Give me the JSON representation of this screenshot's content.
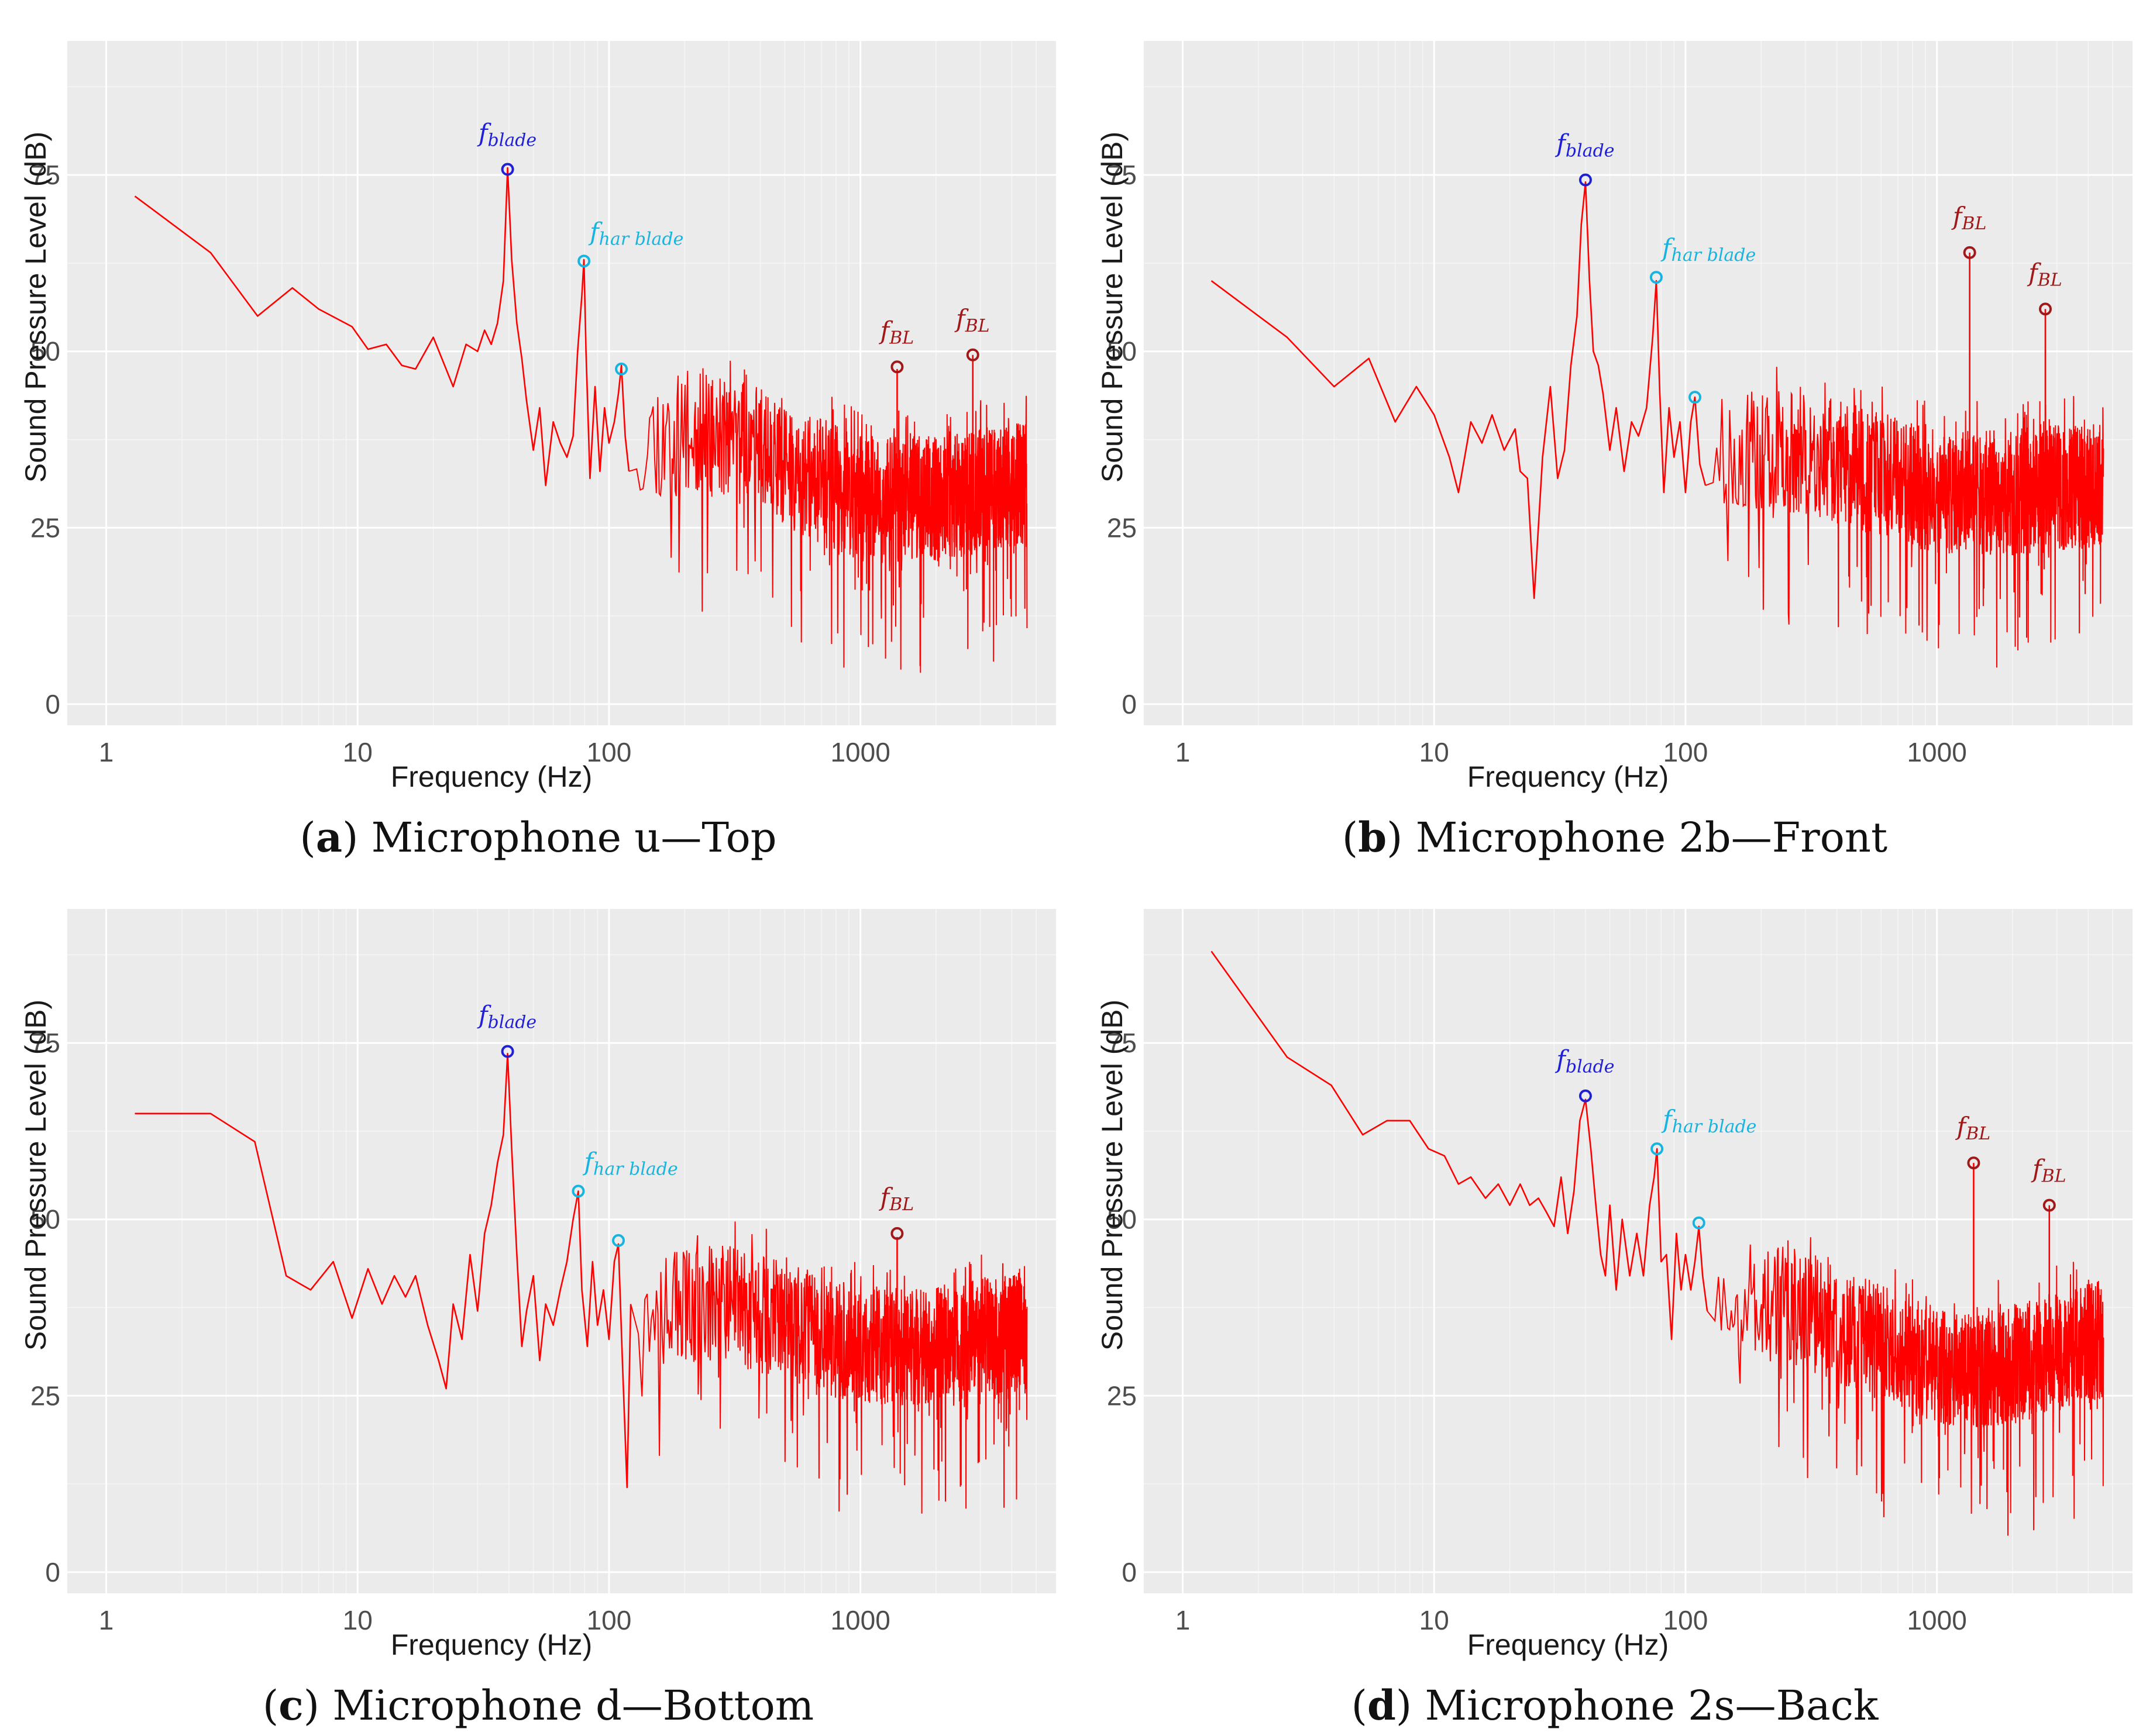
{
  "colors": {
    "panel_bg": "#ebebeb",
    "grid_major": "#ffffff",
    "line": "#ff0000",
    "blade": "#1f1fd6",
    "harmonic": "#18b4e0",
    "bl": "#a01818"
  },
  "chart_data": [
    {
      "id": "a",
      "type": "line",
      "caption_letter": "a",
      "caption_text": "Microphone u—Top",
      "xlabel": "Frequency (Hz)",
      "ylabel": "Sound Pressure Level (dB)",
      "x_scale": "log10",
      "xlim": [
        0.7,
        6000
      ],
      "ylim": [
        -3,
        94
      ],
      "x_ticks": [
        1,
        10,
        100,
        1000
      ],
      "x_tick_labels": [
        "1",
        "10",
        "100",
        "1000"
      ],
      "y_ticks": [
        0,
        25,
        50,
        75
      ],
      "y_tick_labels": [
        "0",
        "25",
        "50",
        "75"
      ],
      "low_curve": [
        [
          1.3,
          72
        ],
        [
          2.6,
          64
        ],
        [
          4,
          55
        ],
        [
          5.5,
          59
        ],
        [
          7,
          56
        ],
        [
          9.5,
          53.5
        ],
        [
          11,
          50.3
        ],
        [
          13,
          51
        ],
        [
          15,
          48
        ],
        [
          17,
          47.5
        ],
        [
          20,
          52
        ],
        [
          24,
          45
        ],
        [
          27,
          51
        ],
        [
          30,
          50
        ],
        [
          32,
          53
        ],
        [
          34,
          51
        ],
        [
          36,
          54
        ],
        [
          38,
          60
        ],
        [
          39.5,
          76
        ],
        [
          41,
          63
        ],
        [
          43,
          54
        ],
        [
          45,
          49
        ],
        [
          47,
          43
        ],
        [
          50,
          36
        ],
        [
          53,
          42
        ],
        [
          56,
          31
        ],
        [
          60,
          40
        ],
        [
          64,
          37
        ],
        [
          68,
          35
        ],
        [
          72,
          38
        ],
        [
          75,
          50
        ],
        [
          78,
          58
        ],
        [
          79.5,
          63
        ],
        [
          81,
          50
        ],
        [
          84,
          32
        ],
        [
          88,
          45
        ],
        [
          92,
          33
        ],
        [
          96,
          42
        ],
        [
          100,
          37
        ],
        [
          105,
          40
        ],
        [
          109,
          44
        ],
        [
          112,
          48
        ],
        [
          116,
          38
        ],
        [
          120,
          33
        ]
      ],
      "noise": {
        "start": 120,
        "end": 4600,
        "envelope": [
          [
            120,
            38
          ],
          [
            300,
            38
          ],
          [
            1000,
            29
          ],
          [
            1800,
            29
          ],
          [
            4600,
            31
          ]
        ],
        "amplitude": 9,
        "density": 1300,
        "seed": 11
      },
      "spikes": [
        [
          1400,
          47.5
        ],
        [
          2800,
          49.5
        ]
      ],
      "annotations": [
        {
          "label": "f",
          "sub": "blade",
          "kind": "blade",
          "x": 39.5,
          "y": 75.8
        },
        {
          "label": "f",
          "sub": "har blade",
          "kind": "harmonic",
          "x": 79.5,
          "y": 62.8
        },
        {
          "label": "",
          "sub": "",
          "kind": "harmonic",
          "x": 112,
          "y": 47.5
        },
        {
          "label": "f",
          "sub": "BL",
          "kind": "bl",
          "x": 1400,
          "y": 47.8
        },
        {
          "label": "f",
          "sub": "BL",
          "kind": "bl",
          "x": 2800,
          "y": 49.5
        }
      ]
    },
    {
      "id": "b",
      "type": "line",
      "caption_letter": "b",
      "caption_text": "Microphone 2b—Front",
      "xlabel": "Frequency (Hz)",
      "ylabel": "Sound Pressure Level (dB)",
      "x_scale": "log10",
      "xlim": [
        0.7,
        6000
      ],
      "ylim": [
        -3,
        94
      ],
      "x_ticks": [
        1,
        10,
        100,
        1000
      ],
      "x_tick_labels": [
        "1",
        "10",
        "100",
        "1000"
      ],
      "y_ticks": [
        0,
        25,
        50,
        75
      ],
      "y_tick_labels": [
        "0",
        "25",
        "50",
        "75"
      ],
      "low_curve": [
        [
          1.3,
          60
        ],
        [
          2.6,
          52
        ],
        [
          4,
          45
        ],
        [
          5.5,
          49
        ],
        [
          7,
          40
        ],
        [
          8.5,
          45
        ],
        [
          10,
          41
        ],
        [
          11.5,
          35
        ],
        [
          12.5,
          30
        ],
        [
          14,
          40
        ],
        [
          15.5,
          37
        ],
        [
          17,
          41
        ],
        [
          19,
          36
        ],
        [
          21,
          39
        ],
        [
          22,
          33
        ],
        [
          23.5,
          32
        ],
        [
          25,
          15
        ],
        [
          27,
          35
        ],
        [
          29,
          45
        ],
        [
          31,
          32
        ],
        [
          33,
          36
        ],
        [
          35,
          48
        ],
        [
          37,
          55
        ],
        [
          38.5,
          68
        ],
        [
          40,
          74
        ],
        [
          41.5,
          60
        ],
        [
          43,
          50
        ],
        [
          45,
          48
        ],
        [
          47,
          44
        ],
        [
          50,
          36
        ],
        [
          53,
          42
        ],
        [
          57,
          33
        ],
        [
          61,
          40
        ],
        [
          65,
          38
        ],
        [
          70,
          42
        ],
        [
          74,
          52
        ],
        [
          76.5,
          60
        ],
        [
          79,
          44
        ],
        [
          82,
          30
        ],
        [
          86,
          42
        ],
        [
          90,
          35
        ],
        [
          95,
          40
        ],
        [
          100,
          30
        ],
        [
          105,
          40
        ],
        [
          109,
          43.5
        ],
        [
          114,
          34
        ],
        [
          120,
          31
        ]
      ],
      "noise": {
        "start": 120,
        "end": 4600,
        "envelope": [
          [
            120,
            36
          ],
          [
            300,
            36
          ],
          [
            1000,
            30
          ],
          [
            1800,
            30
          ],
          [
            4600,
            31
          ]
        ],
        "amplitude": 9,
        "density": 1300,
        "seed": 23
      },
      "spikes": [
        [
          1350,
          64
        ],
        [
          2700,
          56
        ]
      ],
      "annotations": [
        {
          "label": "f",
          "sub": "blade",
          "kind": "blade",
          "x": 40,
          "y": 74.3
        },
        {
          "label": "f",
          "sub": "har blade",
          "kind": "harmonic",
          "x": 76.5,
          "y": 60.5
        },
        {
          "label": "",
          "sub": "",
          "kind": "harmonic",
          "x": 109,
          "y": 43.5
        },
        {
          "label": "f",
          "sub": "BL",
          "kind": "bl",
          "x": 1350,
          "y": 64
        },
        {
          "label": "f",
          "sub": "BL",
          "kind": "bl",
          "x": 2700,
          "y": 56
        }
      ]
    },
    {
      "id": "c",
      "type": "line",
      "caption_letter": "c",
      "caption_text": "Microphone d—Bottom",
      "xlabel": "Frequency (Hz)",
      "ylabel": "Sound Pressure Level (dB)",
      "x_scale": "log10",
      "xlim": [
        0.7,
        6000
      ],
      "ylim": [
        -3,
        94
      ],
      "x_ticks": [
        1,
        10,
        100,
        1000
      ],
      "x_tick_labels": [
        "1",
        "10",
        "100",
        "1000"
      ],
      "y_ticks": [
        0,
        25,
        50,
        75
      ],
      "y_tick_labels": [
        "0",
        "25",
        "50",
        "75"
      ],
      "low_curve": [
        [
          1.3,
          65
        ],
        [
          2.6,
          65
        ],
        [
          3.9,
          61
        ],
        [
          5.2,
          42
        ],
        [
          6.5,
          40
        ],
        [
          8,
          44
        ],
        [
          9.5,
          36
        ],
        [
          11,
          43
        ],
        [
          12.5,
          38
        ],
        [
          14,
          42
        ],
        [
          15.5,
          39
        ],
        [
          17,
          42
        ],
        [
          19,
          35
        ],
        [
          21,
          30
        ],
        [
          22.5,
          26
        ],
        [
          24,
          38
        ],
        [
          26,
          33
        ],
        [
          28,
          45
        ],
        [
          30,
          37
        ],
        [
          32,
          48
        ],
        [
          34,
          52
        ],
        [
          36,
          58
        ],
        [
          38,
          62
        ],
        [
          39.5,
          73.5
        ],
        [
          41,
          60
        ],
        [
          43,
          45
        ],
        [
          45,
          32
        ],
        [
          47,
          37
        ],
        [
          50,
          42
        ],
        [
          53,
          30
        ],
        [
          56,
          38
        ],
        [
          60,
          35
        ],
        [
          64,
          40
        ],
        [
          68,
          44
        ],
        [
          72,
          50
        ],
        [
          75.5,
          54
        ],
        [
          78,
          40
        ],
        [
          82,
          32
        ],
        [
          86,
          44
        ],
        [
          90,
          35
        ],
        [
          95,
          40
        ],
        [
          100,
          33
        ],
        [
          105,
          44
        ],
        [
          109,
          46.5
        ],
        [
          113,
          30
        ],
        [
          118,
          12
        ],
        [
          122,
          38
        ]
      ],
      "noise": {
        "start": 122,
        "end": 4600,
        "envelope": [
          [
            122,
            38
          ],
          [
            300,
            38
          ],
          [
            1000,
            32
          ],
          [
            1800,
            32
          ],
          [
            4600,
            34
          ]
        ],
        "amplitude": 8.5,
        "density": 1300,
        "seed": 37
      },
      "spikes": [
        [
          1400,
          47.5
        ]
      ],
      "annotations": [
        {
          "label": "f",
          "sub": "blade",
          "kind": "blade",
          "x": 39.5,
          "y": 73.8
        },
        {
          "label": "f",
          "sub": "har blade",
          "kind": "harmonic",
          "x": 75.5,
          "y": 54
        },
        {
          "label": "",
          "sub": "",
          "kind": "harmonic",
          "x": 109,
          "y": 47
        },
        {
          "label": "f",
          "sub": "BL",
          "kind": "bl",
          "x": 1400,
          "y": 48
        }
      ]
    },
    {
      "id": "d",
      "type": "line",
      "caption_letter": "d",
      "caption_text": "Microphone 2s—Back",
      "xlabel": "Frequency (Hz)",
      "ylabel": "Sound Pressure Level (dB)",
      "x_scale": "log10",
      "xlim": [
        0.7,
        6000
      ],
      "ylim": [
        -3,
        94
      ],
      "x_ticks": [
        1,
        10,
        100,
        1000
      ],
      "x_tick_labels": [
        "1",
        "10",
        "100",
        "1000"
      ],
      "y_ticks": [
        0,
        25,
        50,
        75
      ],
      "y_tick_labels": [
        "0",
        "25",
        "50",
        "75"
      ],
      "low_curve": [
        [
          1.3,
          88
        ],
        [
          2.6,
          73
        ],
        [
          3.9,
          69
        ],
        [
          5.2,
          62
        ],
        [
          6.5,
          64
        ],
        [
          8,
          64
        ],
        [
          9.5,
          60
        ],
        [
          11,
          59
        ],
        [
          12.5,
          55
        ],
        [
          14,
          56
        ],
        [
          16,
          53
        ],
        [
          18,
          55
        ],
        [
          20,
          52
        ],
        [
          22,
          55
        ],
        [
          24,
          52
        ],
        [
          26,
          53
        ],
        [
          28,
          51
        ],
        [
          30,
          49
        ],
        [
          32,
          56
        ],
        [
          34,
          48
        ],
        [
          36,
          54
        ],
        [
          38,
          64
        ],
        [
          40,
          67
        ],
        [
          42,
          60
        ],
        [
          44,
          52
        ],
        [
          46,
          45
        ],
        [
          48,
          42
        ],
        [
          50,
          52
        ],
        [
          53,
          40
        ],
        [
          56,
          50
        ],
        [
          60,
          42
        ],
        [
          64,
          48
        ],
        [
          68,
          42
        ],
        [
          72,
          52
        ],
        [
          75,
          56
        ],
        [
          77,
          60
        ],
        [
          80,
          44
        ],
        [
          84,
          45
        ],
        [
          88,
          33
        ],
        [
          92,
          48
        ],
        [
          96,
          40
        ],
        [
          100,
          45
        ],
        [
          105,
          40
        ],
        [
          109,
          44
        ],
        [
          113,
          49
        ],
        [
          117,
          42
        ],
        [
          122,
          37
        ]
      ],
      "noise": {
        "start": 122,
        "end": 4600,
        "envelope": [
          [
            122,
            40
          ],
          [
            300,
            37
          ],
          [
            1000,
            29
          ],
          [
            1800,
            29
          ],
          [
            4600,
            33
          ]
        ],
        "amplitude": 8.5,
        "density": 1300,
        "seed": 53
      },
      "spikes": [
        [
          1400,
          58
        ],
        [
          2800,
          52
        ]
      ],
      "annotations": [
        {
          "label": "f",
          "sub": "blade",
          "kind": "blade",
          "x": 40,
          "y": 67.5
        },
        {
          "label": "f",
          "sub": "har blade",
          "kind": "harmonic",
          "x": 77,
          "y": 60
        },
        {
          "label": "",
          "sub": "",
          "kind": "harmonic",
          "x": 113,
          "y": 49.5
        },
        {
          "label": "f",
          "sub": "BL",
          "kind": "bl",
          "x": 1400,
          "y": 58
        },
        {
          "label": "f",
          "sub": "BL",
          "kind": "bl",
          "x": 2800,
          "y": 52
        }
      ]
    }
  ]
}
